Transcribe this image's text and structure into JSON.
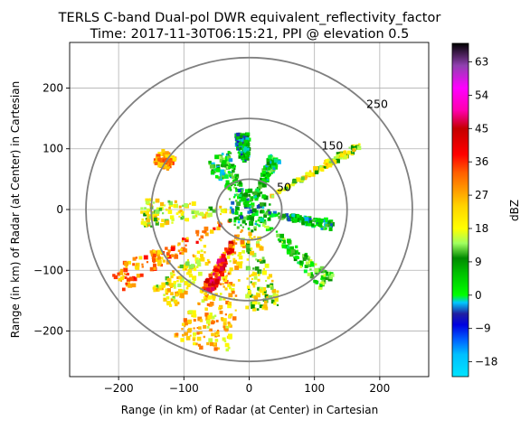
{
  "chart_data": {
    "type": "heatmap",
    "title": "TERLS C-band Dual-pol DWR equivalent_reflectivity_factor",
    "subtitle": "Time: 2017-11-30T06:15:21, PPI @ elevation 0.5",
    "xlabel": "Range (in km) of Radar (at Center) in Cartesian",
    "ylabel": "Range (in km) of Radar (at Center) in Cartesian",
    "xlim": [
      -275,
      275
    ],
    "ylim": [
      -275,
      275
    ],
    "xticks": [
      -200,
      -100,
      0,
      100,
      200
    ],
    "yticks": [
      -200,
      -100,
      0,
      100,
      200
    ],
    "xtick_labels": [
      "−200",
      "−100",
      "0",
      "100",
      "200"
    ],
    "ytick_labels": [
      "−200",
      "−100",
      "0",
      "100",
      "200"
    ],
    "grid": true,
    "range_rings": [
      {
        "radius": 50,
        "label": "50"
      },
      {
        "radius": 150,
        "label": "150"
      },
      {
        "radius": 250,
        "label": "250"
      }
    ],
    "colorbar": {
      "label": "dBZ",
      "range": [
        -22,
        68
      ],
      "ticks": [
        -18,
        -9,
        0,
        9,
        18,
        27,
        36,
        45,
        54,
        63
      ],
      "tick_labels": [
        "−18",
        "−9",
        "0",
        "9",
        "18",
        "27",
        "36",
        "45",
        "54",
        "63"
      ]
    },
    "echo_regions": [
      {
        "name": "echo-southwest-band",
        "azimuth": 240,
        "width": 11,
        "r0": 30,
        "r1": 235,
        "value": 30
      },
      {
        "name": "echo-south-sector",
        "azimuth": 198,
        "width": 22,
        "r0": 35,
        "r1": 240,
        "value": 24
      },
      {
        "name": "echo-south-core",
        "azimuth": 205,
        "width": 8,
        "r0": 60,
        "r1": 150,
        "value": 40
      },
      {
        "name": "echo-south-southeast",
        "azimuth": 172,
        "width": 20,
        "r0": 30,
        "r1": 165,
        "value": 18
      },
      {
        "name": "echo-southwest-outer",
        "azimuth": 222,
        "width": 14,
        "r0": 90,
        "r1": 200,
        "value": 20
      },
      {
        "name": "echo-west-streaks",
        "azimuth": 268,
        "width": 18,
        "r0": 20,
        "r1": 165,
        "value": 19
      },
      {
        "name": "echo-northwest-cell",
        "azimuth": 302,
        "width": 9,
        "r0": 140,
        "r1": 165,
        "value": 28
      },
      {
        "name": "echo-north-northwest",
        "azimuth": 330,
        "width": 26,
        "r0": 25,
        "r1": 100,
        "value": 6
      },
      {
        "name": "echo-north-band",
        "azimuth": 25,
        "width": 12,
        "r0": 20,
        "r1": 95,
        "value": 6
      },
      {
        "name": "echo-northeast-streak",
        "azimuth": 58,
        "width": 4,
        "r0": 40,
        "r1": 200,
        "value": 18
      },
      {
        "name": "echo-east-band",
        "azimuth": 102,
        "width": 8,
        "r0": 20,
        "r1": 130,
        "value": 4
      },
      {
        "name": "echo-southeast-band",
        "azimuth": 135,
        "width": 10,
        "r0": 20,
        "r1": 170,
        "value": 8
      },
      {
        "name": "echo-north-scatter",
        "azimuth": 355,
        "width": 10,
        "r0": 80,
        "r1": 125,
        "value": 3
      },
      {
        "name": "echo-near-core",
        "azimuth": 0,
        "width": 360,
        "r0": 0,
        "r1": 35,
        "value": 4
      }
    ]
  }
}
